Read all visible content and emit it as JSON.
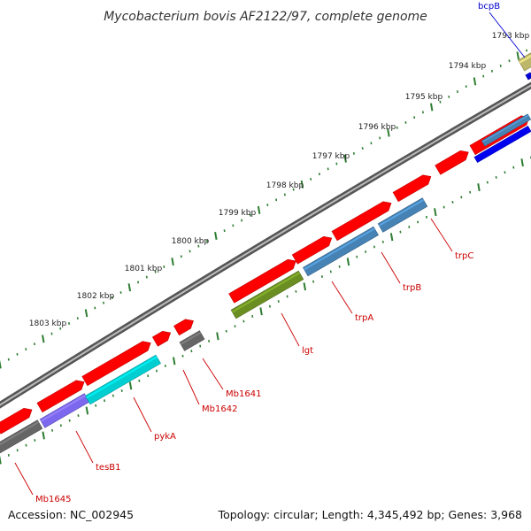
{
  "title": "Mycobacterium bovis AF2122/97, complete genome",
  "footer": {
    "accession": "Accession: NC_002945",
    "summary": "Topology: circular; Length: 4,345,492 bp; Genes: 3,968"
  },
  "colors": {
    "forward": "#ff0000",
    "label_red": "#cc0000",
    "label_blue": "#0000cc",
    "backbone": "#808080",
    "tick": "#2e7d32"
  },
  "kbp_ticks": [
    "1793 kbp",
    "1794 kbp",
    "1795 kbp",
    "1796 kbp",
    "1797 kbp",
    "1798 kbp",
    "1799 kbp",
    "1800 kbp",
    "1801 kbp",
    "1802 kbp",
    "1803 kbp"
  ],
  "genes": [
    {
      "name": "Mb1645",
      "color": "#ff0000"
    },
    {
      "name": "tesB1",
      "color": "#7b68ee"
    },
    {
      "name": "pykA",
      "color": "#00ced1"
    },
    {
      "name": "Mb1642",
      "color": "#ff0000"
    },
    {
      "name": "Mb1641",
      "color": "#ff0000"
    },
    {
      "name": "lgt",
      "color": "#6b8e23"
    },
    {
      "name": "trpA",
      "color": "#4682b4"
    },
    {
      "name": "trpB",
      "color": "#4682b4"
    },
    {
      "name": "trpC",
      "color": "#4682b4"
    },
    {
      "name": "bcpB",
      "color": "#bdb76b"
    }
  ]
}
